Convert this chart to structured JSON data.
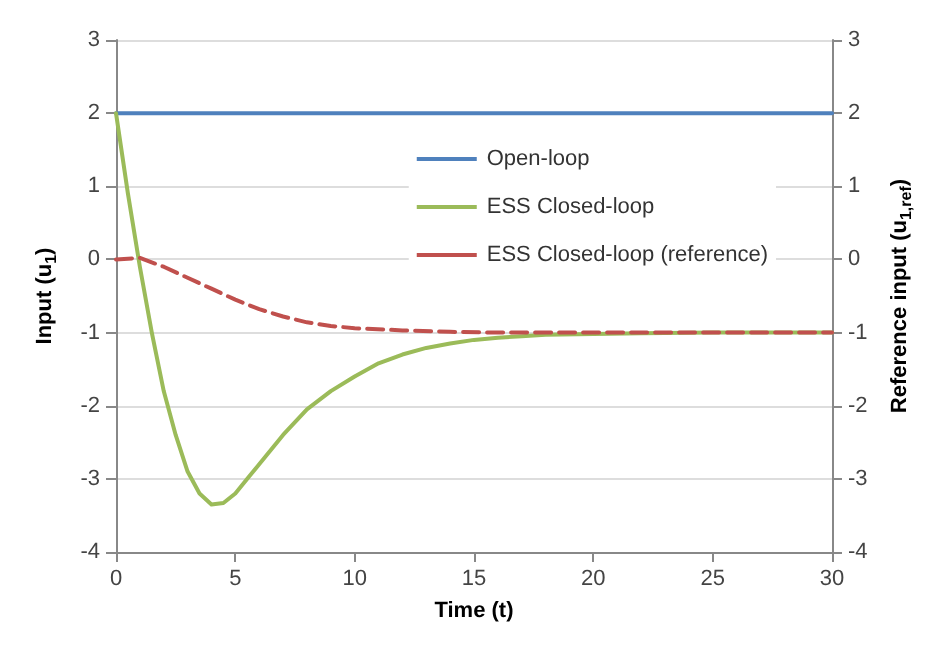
{
  "chart_data": {
    "type": "line",
    "xlabel": "Time (t)",
    "ylabel": "Input (u$_{1}$)",
    "y2label": "Reference input (u$_{1,ref}$)",
    "xlim": [
      0,
      30
    ],
    "xticks": [
      0,
      5,
      10,
      15,
      20,
      25,
      30
    ],
    "ylim": [
      -4,
      3
    ],
    "yticks": [
      -4,
      -3,
      -2,
      -1,
      0,
      1,
      2,
      3
    ],
    "y2lim": [
      -4,
      3
    ],
    "y2ticks": [
      -4,
      -3,
      -2,
      -1,
      0,
      1,
      2,
      3
    ],
    "grid": "y",
    "legend": "top right",
    "marker": "none",
    "series": [
      {
        "name": "Open-loop",
        "color": "#4f81bd",
        "x": [
          0,
          30
        ],
        "values": [
          2,
          2
        ]
      },
      {
        "name": "ESS Closed-loop",
        "color": "#9bbb59",
        "x": [
          0,
          0.5,
          1,
          1.5,
          2,
          2.5,
          3,
          3.5,
          4,
          4.5,
          5,
          5.5,
          6,
          7,
          8,
          9,
          10,
          11,
          12,
          13,
          14,
          15,
          16,
          17,
          18,
          20,
          22,
          25,
          30
        ],
        "values": [
          2,
          0.9,
          -0.1,
          -1.0,
          -1.8,
          -2.4,
          -2.9,
          -3.2,
          -3.35,
          -3.33,
          -3.2,
          -3.0,
          -2.8,
          -2.4,
          -2.05,
          -1.8,
          -1.6,
          -1.42,
          -1.3,
          -1.21,
          -1.15,
          -1.1,
          -1.07,
          -1.05,
          -1.03,
          -1.02,
          -1.01,
          -1.0,
          -1.0
        ]
      },
      {
        "name": "ESS Closed-loop (reference)",
        "color": "#c0504d",
        "line_style": "dashed",
        "x": [
          0,
          1,
          2,
          3,
          4,
          5,
          6,
          7,
          8,
          9,
          10,
          12,
          14,
          16,
          20,
          30
        ],
        "values": [
          0,
          0.02,
          -0.1,
          -0.25,
          -0.4,
          -0.55,
          -0.68,
          -0.78,
          -0.86,
          -0.91,
          -0.94,
          -0.97,
          -0.99,
          -1.0,
          -1.0,
          -1.0
        ]
      }
    ]
  }
}
